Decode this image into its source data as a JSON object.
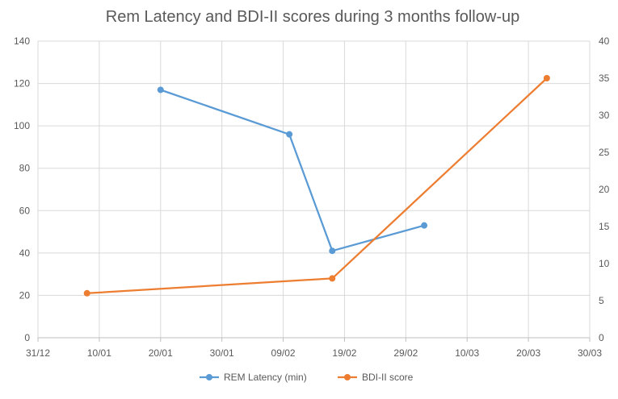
{
  "chart_data": {
    "type": "line",
    "title": "Rem Latency and BDI-II scores during 3 months follow-up",
    "x_axis": {
      "ticks": [
        "31/12",
        "10/01",
        "20/01",
        "30/01",
        "09/02",
        "19/02",
        "29/02",
        "10/03",
        "20/03",
        "30/03"
      ],
      "range": [
        "2015-12-31",
        "2016-03-30"
      ]
    },
    "y_left": {
      "range": [
        0,
        140
      ],
      "ticks": [
        0,
        20,
        40,
        60,
        80,
        100,
        120,
        140
      ]
    },
    "y_right": {
      "range": [
        0,
        40
      ],
      "ticks": [
        0,
        5,
        10,
        15,
        20,
        25,
        30,
        35,
        40
      ]
    },
    "grid": true,
    "legend_position": "bottom",
    "series": [
      {
        "name": "REM Latency (min)",
        "axis": "left",
        "color": "#5b9bd5",
        "points": [
          {
            "x": "2016-01-20",
            "y": 117
          },
          {
            "x": "2016-02-10",
            "y": 96
          },
          {
            "x": "2016-02-17",
            "y": 41
          },
          {
            "x": "2016-03-03",
            "y": 53
          }
        ]
      },
      {
        "name": "BDI-II score",
        "axis": "right",
        "color": "#ed7d31",
        "points": [
          {
            "x": "2016-01-08",
            "y": 6
          },
          {
            "x": "2016-02-17",
            "y": 8
          },
          {
            "x": "2016-03-23",
            "y": 35
          }
        ]
      }
    ]
  }
}
